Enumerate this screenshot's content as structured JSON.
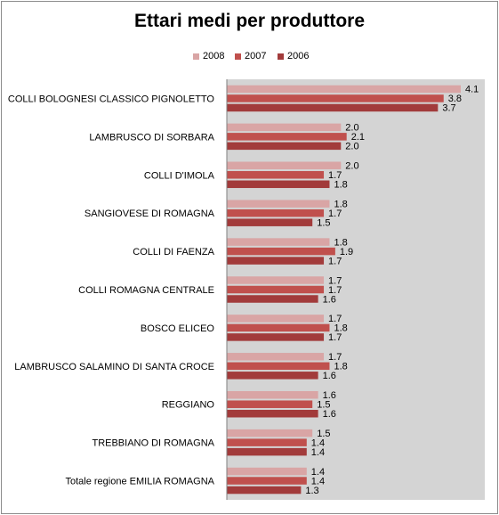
{
  "chart_data": {
    "type": "bar",
    "orientation": "horizontal",
    "title": "Ettari medi per produttore",
    "xlim": [
      0,
      4.1
    ],
    "grid": false,
    "legend_position": "top",
    "categories": [
      "COLLI BOLOGNESI CLASSICO PIGNOLETTO",
      "LAMBRUSCO DI SORBARA",
      "COLLI D'IMOLA",
      "SANGIOVESE  DI ROMAGNA",
      "COLLI DI FAENZA",
      "COLLI ROMAGNA CENTRALE",
      "BOSCO ELICEO",
      "LAMBRUSCO SALAMINO DI SANTA CROCE",
      "REGGIANO",
      "TREBBIANO  DI ROMAGNA",
      "Totale regione EMILIA ROMAGNA"
    ],
    "series": [
      {
        "name": "2008",
        "color": "#d9a5a5",
        "values": [
          4.1,
          2.0,
          2.0,
          1.8,
          1.8,
          1.7,
          1.7,
          1.7,
          1.6,
          1.5,
          1.4
        ]
      },
      {
        "name": "2007",
        "color": "#c0504d",
        "values": [
          3.8,
          2.1,
          1.7,
          1.7,
          1.9,
          1.7,
          1.8,
          1.8,
          1.5,
          1.4,
          1.4
        ]
      },
      {
        "name": "2006",
        "color": "#a23b3b",
        "values": [
          3.7,
          2.0,
          1.8,
          1.5,
          1.7,
          1.6,
          1.7,
          1.6,
          1.6,
          1.4,
          1.3
        ]
      }
    ],
    "plot_background": "#d4d4d4"
  }
}
